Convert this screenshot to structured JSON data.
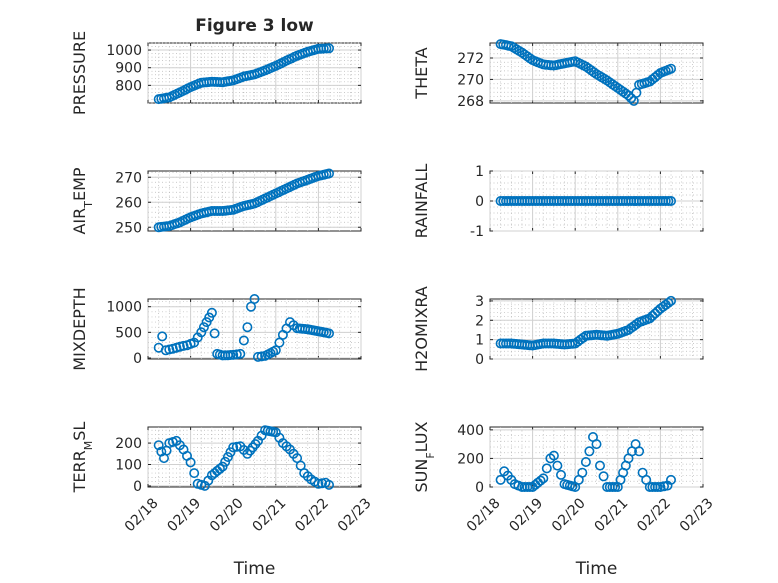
{
  "figure": {
    "title": "Figure 3 low",
    "marker_color": "#0072BD"
  },
  "chart_data": [
    {
      "type": "scatter",
      "title": "Figure 3 low",
      "ylabel": "PRESSURE",
      "ylim": [
        700,
        1040
      ],
      "yticks": [
        800,
        900,
        1000
      ],
      "yticklabels": [
        "800",
        "900",
        "1000"
      ],
      "xlim": [
        "2020-02-18",
        "2020-02-23"
      ],
      "xtick_labels": [],
      "x": [
        "02/18 06:00",
        "02/18 12:00",
        "02/18 18:00",
        "02/19 00:00",
        "02/19 06:00",
        "02/19 12:00",
        "02/19 18:00",
        "02/20 00:00",
        "02/20 06:00",
        "02/20 12:00",
        "02/20 18:00",
        "02/21 00:00",
        "02/21 06:00",
        "02/21 12:00",
        "02/21 18:00",
        "02/22 00:00",
        "02/22 06:00"
      ],
      "y": [
        722,
        732,
        760,
        790,
        815,
        820,
        818,
        828,
        850,
        862,
        885,
        910,
        940,
        968,
        990,
        1007,
        1010
      ]
    },
    {
      "type": "scatter",
      "ylabel": "THETA",
      "ylim": [
        267.8,
        273.4
      ],
      "yticks": [
        268,
        270,
        272
      ],
      "yticklabels": [
        "268",
        "270",
        "272"
      ],
      "xlim": [
        "2020-02-18",
        "2020-02-23"
      ],
      "xtick_labels": [],
      "x": [
        "02/18 06:00",
        "02/18 12:00",
        "02/18 18:00",
        "02/19 00:00",
        "02/19 06:00",
        "02/19 12:00",
        "02/19 18:00",
        "02/20 00:00",
        "02/20 06:00",
        "02/20 12:00",
        "02/20 18:00",
        "02/21 00:00",
        "02/21 06:00",
        "02/21 09:00",
        "02/21 12:00",
        "02/21 18:00",
        "02/22 00:00",
        "02/22 06:00"
      ],
      "y": [
        273.3,
        273.1,
        272.5,
        271.8,
        271.4,
        271.3,
        271.5,
        271.7,
        271.2,
        270.5,
        269.9,
        269.2,
        268.5,
        268.0,
        269.5,
        269.8,
        270.6,
        271.0
      ]
    },
    {
      "type": "scatter",
      "ylabel": "AIR_TEMP",
      "ylim": [
        248.5,
        272.5
      ],
      "yticks": [
        250,
        260,
        270
      ],
      "yticklabels": [
        "250",
        "260",
        "270"
      ],
      "xlim": [
        "2020-02-18",
        "2020-02-23"
      ],
      "xtick_labels": [],
      "x": [
        "02/18 06:00",
        "02/18 12:00",
        "02/18 18:00",
        "02/19 00:00",
        "02/19 06:00",
        "02/19 12:00",
        "02/19 18:00",
        "02/20 00:00",
        "02/20 06:00",
        "02/20 12:00",
        "02/20 18:00",
        "02/21 00:00",
        "02/21 06:00",
        "02/21 12:00",
        "02/21 18:00",
        "02/22 00:00",
        "02/22 06:00"
      ],
      "y": [
        250,
        250.5,
        252,
        254,
        255.5,
        256.5,
        256.5,
        257,
        258.5,
        259.5,
        261.5,
        263.5,
        265.5,
        267.5,
        269,
        270.5,
        271.5
      ]
    },
    {
      "type": "scatter",
      "ylabel": "RAINFALL",
      "ylim": [
        -1,
        1
      ],
      "yticks": [
        -1,
        0,
        1
      ],
      "yticklabels": [
        "-1",
        "0",
        "1"
      ],
      "xlim": [
        "2020-02-18",
        "2020-02-23"
      ],
      "xtick_labels": [],
      "x": [
        "02/18 06:00",
        "02/18 12:00",
        "02/18 18:00",
        "02/19 00:00",
        "02/19 06:00",
        "02/19 12:00",
        "02/19 18:00",
        "02/20 00:00",
        "02/20 06:00",
        "02/20 12:00",
        "02/20 18:00",
        "02/21 00:00",
        "02/21 06:00",
        "02/21 12:00",
        "02/21 18:00",
        "02/22 00:00",
        "02/22 06:00"
      ],
      "y": [
        0,
        0,
        0,
        0,
        0,
        0,
        0,
        0,
        0,
        0,
        0,
        0,
        0,
        0,
        0,
        0,
        0
      ]
    },
    {
      "type": "scatter",
      "ylabel": "MIXDEPTH",
      "ylim": [
        -20,
        1150
      ],
      "yticks": [
        0,
        500,
        1000
      ],
      "yticklabels": [
        "0",
        "500",
        "1000"
      ],
      "xlim": [
        "2020-02-18",
        "2020-02-23"
      ],
      "xtick_labels": [],
      "x": [
        "02/18 06:00",
        "02/18 08:00",
        "02/18 10:00",
        "02/18 14:00",
        "02/18 18:00",
        "02/18 22:00",
        "02/19 02:00",
        "02/19 06:00",
        "02/19 09:00",
        "02/19 12:00",
        "02/19 15:00",
        "02/19 18:00",
        "02/20 00:00",
        "02/20 04:00",
        "02/20 08:00",
        "02/20 10:00",
        "02/20 12:00",
        "02/20 14:00",
        "02/20 18:00",
        "02/21 00:00",
        "02/21 04:00",
        "02/21 08:00",
        "02/21 12:00",
        "02/21 18:00",
        "02/22 00:00",
        "02/22 06:00"
      ],
      "y": [
        200,
        420,
        150,
        180,
        220,
        250,
        300,
        500,
        700,
        880,
        80,
        50,
        60,
        80,
        600,
        1000,
        1150,
        20,
        40,
        150,
        450,
        700,
        580,
        560,
        520,
        480
      ]
    },
    {
      "type": "scatter",
      "ylabel": "H2OMIXRA",
      "ylim": [
        0,
        3.1
      ],
      "yticks": [
        0,
        1,
        2,
        3
      ],
      "yticklabels": [
        "0",
        "1",
        "2",
        "3"
      ],
      "xlim": [
        "2020-02-18",
        "2020-02-23"
      ],
      "xtick_labels": [],
      "x": [
        "02/18 06:00",
        "02/18 12:00",
        "02/18 18:00",
        "02/19 00:00",
        "02/19 06:00",
        "02/19 12:00",
        "02/19 18:00",
        "02/20 00:00",
        "02/20 06:00",
        "02/20 12:00",
        "02/20 18:00",
        "02/21 00:00",
        "02/21 06:00",
        "02/21 12:00",
        "02/21 18:00",
        "02/22 00:00",
        "02/22 06:00"
      ],
      "y": [
        0.8,
        0.8,
        0.75,
        0.7,
        0.8,
        0.8,
        0.75,
        0.8,
        1.2,
        1.25,
        1.2,
        1.3,
        1.5,
        1.9,
        2.1,
        2.6,
        3.0
      ]
    },
    {
      "type": "scatter",
      "ylabel": "TERR_MSL",
      "ylim": [
        -5,
        275
      ],
      "yticks": [
        0,
        100,
        200
      ],
      "yticklabels": [
        "0",
        "100",
        "200"
      ],
      "xlim": [
        "2020-02-18",
        "2020-02-23"
      ],
      "xtick_labels": [
        "02/18",
        "02/19",
        "02/20",
        "02/21",
        "02/22",
        "02/23"
      ],
      "xlabel": "Time",
      "x": [
        "02/18 06:00",
        "02/18 09:00",
        "02/18 12:00",
        "02/18 16:00",
        "02/18 20:00",
        "02/19 00:00",
        "02/19 04:00",
        "02/19 08:00",
        "02/19 12:00",
        "02/19 18:00",
        "02/20 00:00",
        "02/20 04:00",
        "02/20 08:00",
        "02/20 14:00",
        "02/20 18:00",
        "02/21 00:00",
        "02/21 04:00",
        "02/21 08:00",
        "02/21 12:00",
        "02/21 16:00",
        "02/21 20:00",
        "02/22 00:00",
        "02/22 04:00",
        "02/22 06:00"
      ],
      "y": [
        190,
        130,
        200,
        210,
        170,
        110,
        10,
        0,
        50,
        90,
        180,
        185,
        150,
        210,
        260,
        250,
        200,
        170,
        130,
        60,
        30,
        10,
        15,
        5
      ]
    },
    {
      "type": "scatter",
      "ylabel": "SUN_FLUX",
      "ylim": [
        0,
        420
      ],
      "yticks": [
        0,
        200,
        400
      ],
      "yticklabels": [
        "0",
        "200",
        "400"
      ],
      "xlim": [
        "2020-02-18",
        "2020-02-23"
      ],
      "xtick_labels": [
        "02/18",
        "02/19",
        "02/20",
        "02/21",
        "02/22",
        "02/23"
      ],
      "xlabel": "Time",
      "x": [
        "02/18 06:00",
        "02/18 08:00",
        "02/18 10:00",
        "02/18 14:00",
        "02/18 18:00",
        "02/19 00:00",
        "02/19 06:00",
        "02/19 10:00",
        "02/19 12:00",
        "02/19 14:00",
        "02/19 18:00",
        "02/20 00:00",
        "02/20 04:00",
        "02/20 08:00",
        "02/20 10:00",
        "02/20 12:00",
        "02/20 14:00",
        "02/20 18:00",
        "02/21 00:00",
        "02/21 06:00",
        "02/21 08:00",
        "02/21 10:00",
        "02/21 12:00",
        "02/21 14:00",
        "02/21 18:00",
        "02/22 00:00",
        "02/22 04:00",
        "02/22 06:00"
      ],
      "y": [
        50,
        110,
        80,
        20,
        0,
        0,
        60,
        200,
        220,
        150,
        20,
        0,
        100,
        250,
        350,
        300,
        150,
        0,
        0,
        200,
        250,
        300,
        250,
        100,
        0,
        0,
        10,
        50
      ]
    }
  ]
}
